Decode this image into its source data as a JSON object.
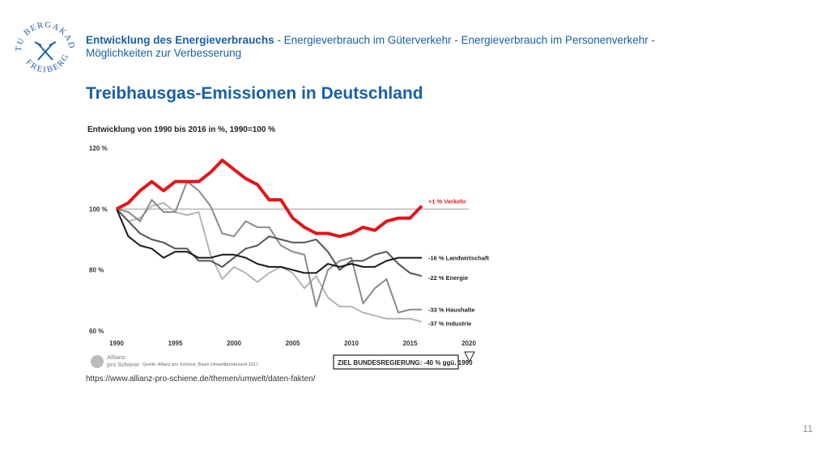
{
  "header": {
    "topic_bold": "Entwicklung des Energieverbrauchs",
    "topic_rest": " - Energieverbrauch im Güterverkehr - Energieverbrauch im Personenverkehr - Möglichkeiten zur Verbesserung"
  },
  "logo": {
    "text_top": "TU BERGAKADEMIE",
    "text_bottom": "FREIBERG",
    "icon": "crossed-hammers-icon",
    "color": "#1a5fa8"
  },
  "slide_title": "Treibhausgas-Emissionen in Deutschland",
  "chart_data": {
    "type": "line",
    "subtitle": "Entwicklung von 1990 bis 2016 in %, 1990=100 %",
    "x_ticks": [
      "1990",
      "1995",
      "2000",
      "2005",
      "2010",
      "2015",
      "2020"
    ],
    "y_ticks": [
      "120 %",
      "100 %",
      "80 %",
      "60 %"
    ],
    "xlim": [
      1990,
      2020
    ],
    "ylim": [
      60,
      120
    ],
    "reference_line": 100,
    "years": [
      1990,
      1991,
      1992,
      1993,
      1994,
      1995,
      1996,
      1997,
      1998,
      1999,
      2000,
      2001,
      2002,
      2003,
      2004,
      2005,
      2006,
      2007,
      2008,
      2009,
      2010,
      2011,
      2012,
      2013,
      2014,
      2015,
      2016
    ],
    "series": [
      {
        "name": "+1 % Verkehr",
        "color": "#e3151a",
        "values": [
          100,
          102,
          106,
          109,
          106,
          109,
          109,
          109,
          112,
          116,
          113,
          110,
          108,
          103,
          103,
          97,
          94,
          92,
          92,
          91,
          92,
          94,
          93,
          96,
          97,
          97,
          101
        ]
      },
      {
        "name": "-16 % Landwirtschaft",
        "color": "#1a1a1a",
        "values": [
          100,
          91,
          88,
          87,
          84,
          86,
          86,
          84,
          84,
          85,
          85,
          84,
          82,
          81,
          81,
          80,
          79,
          79,
          82,
          81,
          82,
          81,
          81,
          83,
          84,
          84,
          84
        ]
      },
      {
        "name": "-22 % Energie",
        "color": "#555555",
        "values": [
          100,
          96,
          92,
          90,
          89,
          87,
          87,
          83,
          83,
          81,
          84,
          87,
          88,
          91,
          90,
          89,
          89,
          90,
          86,
          80,
          83,
          83,
          85,
          86,
          82,
          79,
          78
        ]
      },
      {
        "name": "-33 % Haushalte",
        "color": "#8a8a8a",
        "values": [
          100,
          99,
          96,
          103,
          99,
          99,
          109,
          106,
          101,
          92,
          91,
          96,
          94,
          94,
          88,
          86,
          85,
          68,
          80,
          83,
          84,
          69,
          74,
          77,
          66,
          67,
          67
        ]
      },
      {
        "name": "-37 % Industrie",
        "color": "#b5b5b5",
        "values": [
          100,
          96,
          97,
          101,
          102,
          99,
          98,
          99,
          85,
          77,
          81,
          79,
          76,
          79,
          81,
          79,
          74,
          78,
          71,
          68,
          68,
          66,
          65,
          64,
          64,
          64,
          63
        ]
      }
    ],
    "annotation_box": "ZIEL BUNDESREGIERUNG: -40 % ggü. 1990",
    "source_logo_text": [
      "Allianz",
      "pro Schiene"
    ],
    "source": "Quelle: Allianz pro Schiene, Basis Umweltbundesamt 2017."
  },
  "url": "https://www.allianz-pro-schiene.de/themen/umwelt/daten-fakten/",
  "page_number": "11"
}
